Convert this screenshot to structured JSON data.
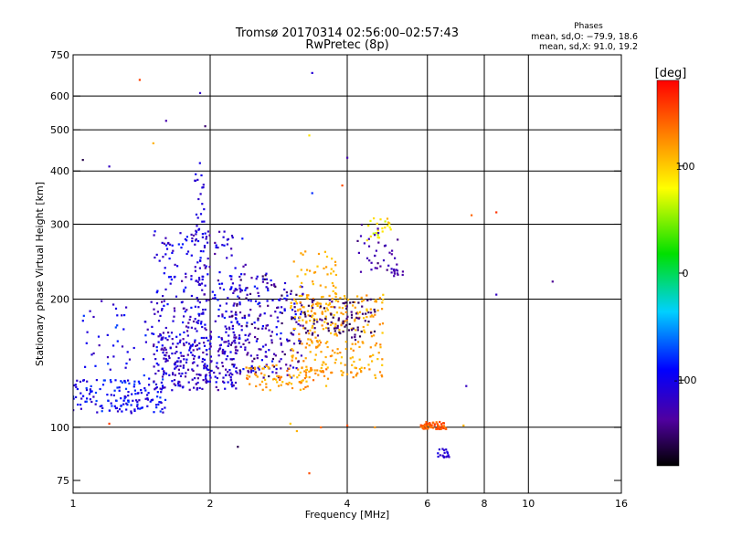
{
  "chart_data": {
    "type": "scatter",
    "title": "Tromsø 20170314 02:56:00–02:57:43",
    "subtitle": "RwPretec (8p)",
    "xlabel": "Frequency [MHz]",
    "ylabel": "Stationary phase Virtual Height [km]",
    "x_scale": "log",
    "y_scale": "log",
    "xlim": [
      1,
      16
    ],
    "ylim": [
      70,
      750
    ],
    "x_ticks": [
      1,
      2,
      4,
      6,
      8,
      10,
      16
    ],
    "y_ticks": [
      75,
      100,
      200,
      300,
      400,
      500,
      600,
      750
    ],
    "grid": true,
    "stats": {
      "heading": "Phases",
      "line_o": "mean, sd,O: −79.9, 18.6",
      "line_x": "mean, sd,X:  91.0, 19.2"
    },
    "colorbar": {
      "label": "[deg]",
      "range": [
        -180,
        180
      ],
      "ticks": [
        100,
        0,
        -100
      ],
      "colormap": "rainbow"
    },
    "clusters": [
      {
        "x": [
          1.0,
          1.6
        ],
        "y": [
          108,
          130
        ],
        "phase": [
          -120,
          -70
        ],
        "n": 160
      },
      {
        "x": [
          1.5,
          2.3
        ],
        "y": [
          122,
          165
        ],
        "phase": [
          -140,
          -90
        ],
        "n": 240
      },
      {
        "x": [
          1.05,
          1.6
        ],
        "y": [
          130,
          200
        ],
        "phase": [
          -130,
          -70
        ],
        "n": 60
      },
      {
        "x": [
          1.5,
          2.4
        ],
        "y": [
          150,
          290
        ],
        "phase": [
          -140,
          -80
        ],
        "n": 220
      },
      {
        "x": [
          1.85,
          1.95
        ],
        "y": [
          170,
          420
        ],
        "phase": [
          -120,
          -100
        ],
        "n": 60
      },
      {
        "x": [
          2.2,
          3.2
        ],
        "y": [
          130,
          230
        ],
        "phase": [
          -160,
          -80
        ],
        "n": 260
      },
      {
        "x": [
          2.4,
          3.6
        ],
        "y": [
          122,
          140
        ],
        "phase": [
          100,
          140
        ],
        "n": 80
      },
      {
        "x": [
          3.0,
          4.8
        ],
        "y": [
          130,
          205
        ],
        "phase": [
          100,
          130
        ],
        "n": 260
      },
      {
        "x": [
          3.0,
          3.8
        ],
        "y": [
          170,
          260
        ],
        "phase": [
          100,
          120
        ],
        "n": 70
      },
      {
        "x": [
          3.2,
          4.6
        ],
        "y": [
          160,
          200
        ],
        "phase": [
          -160,
          -140
        ],
        "n": 90
      },
      {
        "x": [
          4.4,
          5.0
        ],
        "y": [
          270,
          310
        ],
        "phase": [
          60,
          110
        ],
        "n": 25
      },
      {
        "x": [
          4.2,
          5.2
        ],
        "y": [
          230,
          300
        ],
        "phase": [
          -150,
          -120
        ],
        "n": 35
      },
      {
        "x": [
          5.0,
          5.3
        ],
        "y": [
          225,
          240
        ],
        "phase": [
          -140,
          -120
        ],
        "n": 14
      },
      {
        "x": [
          5.8,
          6.6
        ],
        "y": [
          99,
          103
        ],
        "phase": [
          130,
          160
        ],
        "n": 70
      },
      {
        "x": [
          6.3,
          6.7
        ],
        "y": [
          85,
          89
        ],
        "phase": [
          -120,
          -100
        ],
        "n": 18
      }
    ],
    "points": [
      {
        "x": 1.4,
        "y": 655,
        "phase": 155
      },
      {
        "x": 1.9,
        "y": 610,
        "phase": -120
      },
      {
        "x": 1.95,
        "y": 510,
        "phase": -150
      },
      {
        "x": 1.6,
        "y": 525,
        "phase": -130
      },
      {
        "x": 1.5,
        "y": 465,
        "phase": 110
      },
      {
        "x": 1.05,
        "y": 425,
        "phase": -160
      },
      {
        "x": 1.2,
        "y": 410,
        "phase": -120
      },
      {
        "x": 3.3,
        "y": 485,
        "phase": 90
      },
      {
        "x": 3.35,
        "y": 680,
        "phase": -110
      },
      {
        "x": 3.9,
        "y": 370,
        "phase": 150
      },
      {
        "x": 4.0,
        "y": 430,
        "phase": -130
      },
      {
        "x": 3.35,
        "y": 355,
        "phase": -80
      },
      {
        "x": 7.5,
        "y": 315,
        "phase": 140
      },
      {
        "x": 8.5,
        "y": 320,
        "phase": 160
      },
      {
        "x": 8.5,
        "y": 205,
        "phase": -120
      },
      {
        "x": 11.3,
        "y": 220,
        "phase": -140
      },
      {
        "x": 7.3,
        "y": 125,
        "phase": -120
      },
      {
        "x": 3.3,
        "y": 78,
        "phase": 150
      },
      {
        "x": 2.3,
        "y": 90,
        "phase": -160
      },
      {
        "x": 1.2,
        "y": 102,
        "phase": 155
      },
      {
        "x": 3.0,
        "y": 102,
        "phase": 100
      },
      {
        "x": 3.1,
        "y": 98,
        "phase": 110
      },
      {
        "x": 3.5,
        "y": 100,
        "phase": 140
      },
      {
        "x": 4.0,
        "y": 101,
        "phase": 150
      },
      {
        "x": 4.6,
        "y": 100,
        "phase": 120
      },
      {
        "x": 7.2,
        "y": 101,
        "phase": 110
      }
    ]
  }
}
